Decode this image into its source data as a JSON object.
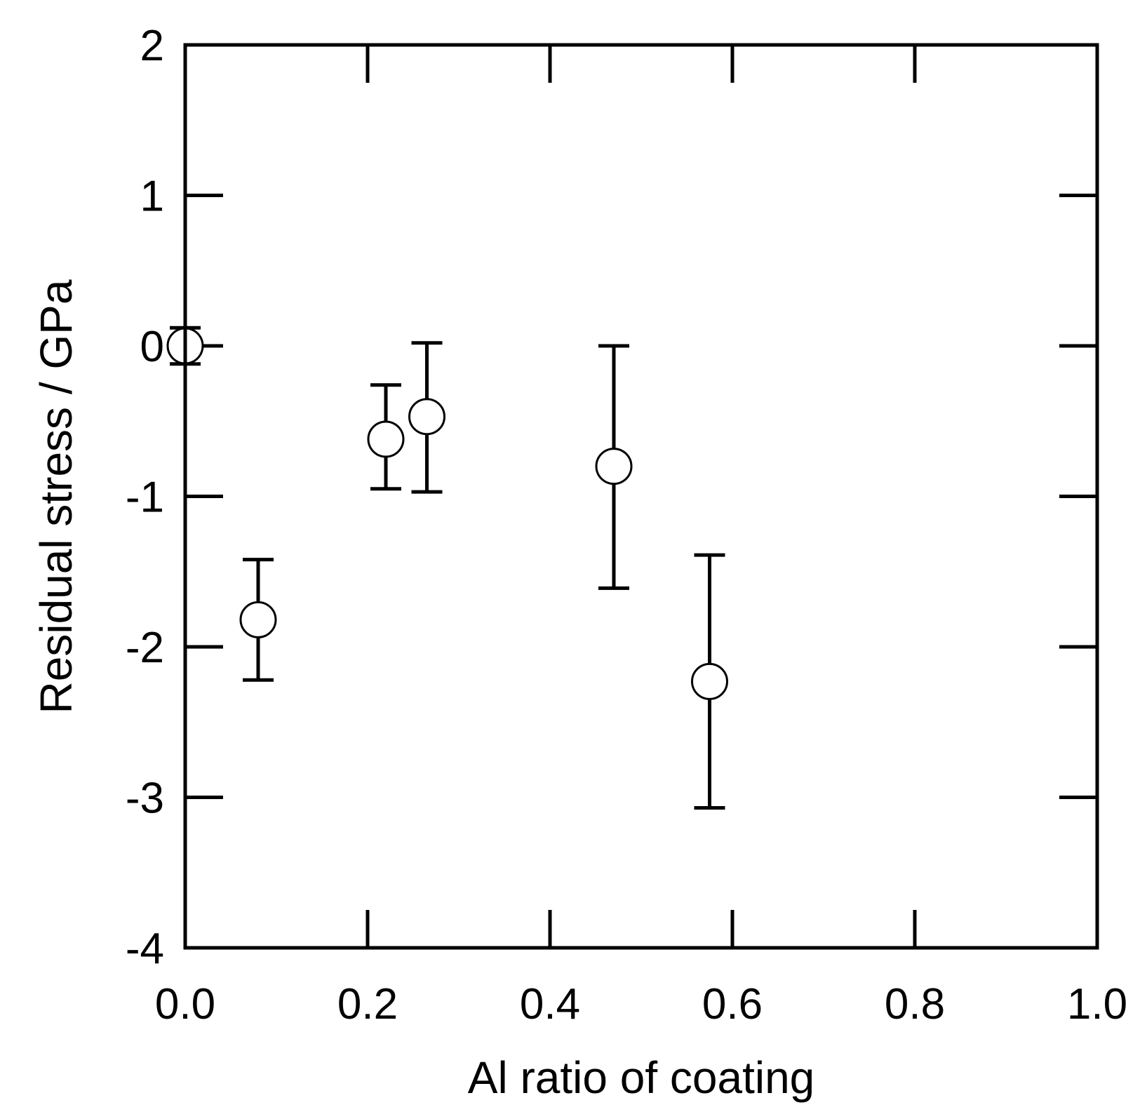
{
  "chart_data": {
    "type": "scatter",
    "title": "",
    "xlabel": "Al ratio of coating",
    "ylabel": "Residual stress / GPa",
    "xlim": [
      0.0,
      1.0
    ],
    "ylim": [
      -4,
      2
    ],
    "x_ticks": [
      "0.0",
      "0.2",
      "0.4",
      "0.6",
      "0.8",
      "1.0"
    ],
    "y_ticks": [
      "2",
      "1",
      "0",
      "-1",
      "-2",
      "-3",
      "-4"
    ],
    "grid": false,
    "legend": "none",
    "marker": "open-circle",
    "colors": {
      "axis": "#000000",
      "marker_fill": "#ffffff",
      "marker_stroke": "#000000"
    },
    "points": [
      {
        "x": 0.0,
        "y": 0.0,
        "y_low": -0.12,
        "y_high": 0.12
      },
      {
        "x": 0.08,
        "y": -1.82,
        "y_low": -2.22,
        "y_high": -1.42
      },
      {
        "x": 0.22,
        "y": -0.62,
        "y_low": -0.95,
        "y_high": -0.26
      },
      {
        "x": 0.265,
        "y": -0.47,
        "y_low": -0.97,
        "y_high": 0.02
      },
      {
        "x": 0.47,
        "y": -0.8,
        "y_low": -1.61,
        "y_high": 0.0
      },
      {
        "x": 0.575,
        "y": -2.23,
        "y_low": -3.07,
        "y_high": -1.39
      }
    ]
  }
}
